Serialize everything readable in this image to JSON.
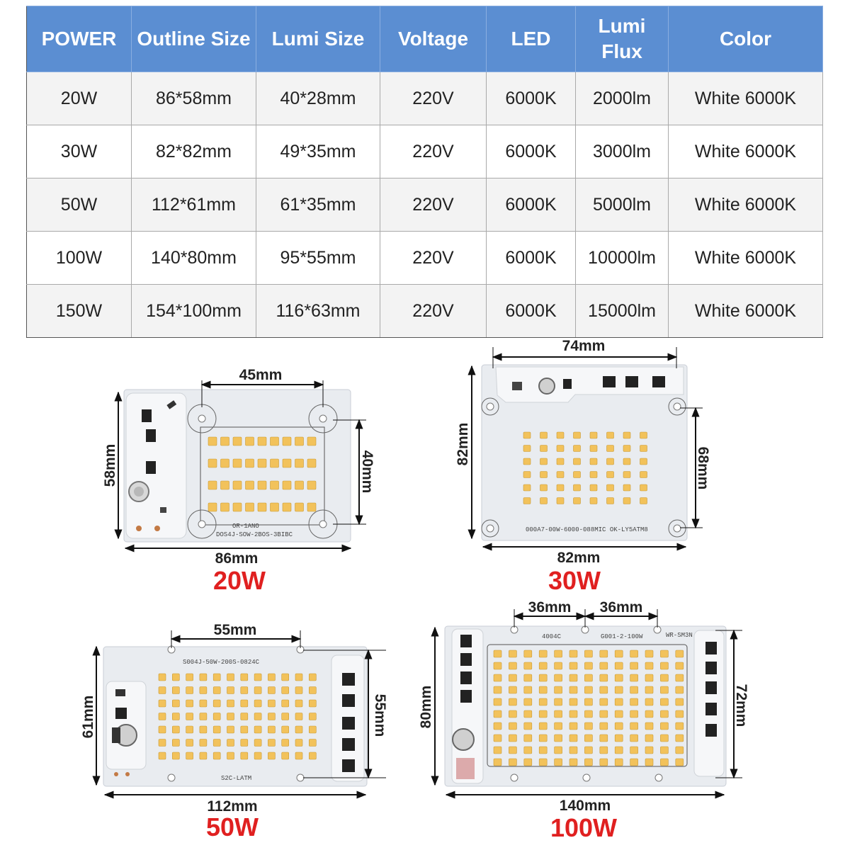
{
  "table": {
    "headers": [
      "POWER",
      "Outline Size",
      "Lumi Size",
      "Voltage",
      "LED",
      "Lumi Flux",
      "Color"
    ],
    "rows": [
      [
        "20W",
        "86*58mm",
        "40*28mm",
        "220V",
        "6000K",
        "2000lm",
        "White 6000K"
      ],
      [
        "30W",
        "82*82mm",
        "49*35mm",
        "220V",
        "6000K",
        "3000lm",
        "White 6000K"
      ],
      [
        "50W",
        "112*61mm",
        "61*35mm",
        "220V",
        "6000K",
        "5000lm",
        "White 6000K"
      ],
      [
        "100W",
        "140*80mm",
        "95*55mm",
        "220V",
        "6000K",
        "10000lm",
        "White 6000K"
      ],
      [
        "150W",
        "154*100mm",
        "116*63mm",
        "220V",
        "6000K",
        "15000lm",
        "White 6000K"
      ]
    ]
  },
  "boards": {
    "b20": {
      "label": "20W",
      "width": "86mm",
      "height": "58mm",
      "spacing": "45mm",
      "lumi_height": "40mm",
      "silk_1": "OR-1ANO",
      "silk_2": "DOS4J-SOW-2BOS-3BIBC",
      "leds_rows": 4,
      "leds_cols": 9
    },
    "b30": {
      "label": "30W",
      "width": "82mm",
      "height": "82mm",
      "spacing": "74mm",
      "lumi_height": "68mm",
      "silk_1": "000A7-00W-6000-088MIC  OK-LY5ATM8",
      "leds_rows": 6,
      "leds_cols": 8
    },
    "b50": {
      "label": "50W",
      "width": "112mm",
      "height": "61mm",
      "spacing": "55mm",
      "lumi_height": "55mm",
      "silk_1": "S004J-50W-200S-0824C",
      "silk_2": "S2C-LATM",
      "leds_rows": 7,
      "leds_cols": 12
    },
    "b100": {
      "label": "100W",
      "width": "140mm",
      "height": "80mm",
      "spacing_1": "36mm",
      "spacing_2": "36mm",
      "lumi_height": "72mm",
      "silk_1": "4004C",
      "silk_2": "G001-2-100W",
      "silk_3": "WR-SM3N",
      "leds_rows": 10,
      "leds_cols": 13
    },
    "colors": {
      "header_bg": "#5b8ed2",
      "board": "#e9ecf0",
      "led": "#f2c25b",
      "wattage": "#e02020"
    }
  }
}
